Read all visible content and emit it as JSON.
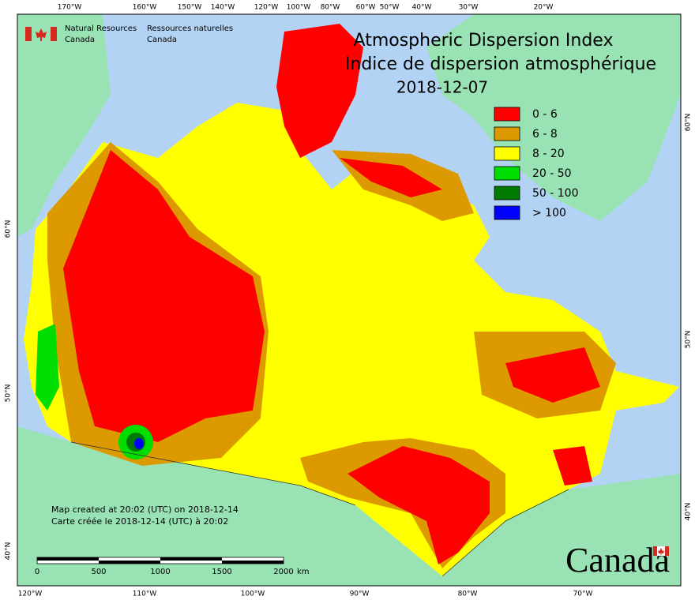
{
  "title": {
    "en": "Atmospheric Dispersion Index",
    "fr": "Indice de dispersion atmosphérique",
    "date": "2018-12-07"
  },
  "agency": {
    "en": [
      "Natural Resources",
      "Canada"
    ],
    "fr": [
      "Ressources naturelles",
      "Canada"
    ]
  },
  "legend": [
    {
      "label": "0 - 6",
      "color": "#ff0000"
    },
    {
      "label": "6 - 8",
      "color": "#dd9a00"
    },
    {
      "label": "8 - 20",
      "color": "#ffff00"
    },
    {
      "label": "20 - 50",
      "color": "#00dd00"
    },
    {
      "label": "50 - 100",
      "color": "#007a00"
    },
    {
      "label": "> 100",
      "color": "#0000ff"
    }
  ],
  "graticule": {
    "top": [
      "170°W",
      "160°W",
      "150°W",
      "140°W",
      "120°W",
      "100°W",
      "80°W",
      "60°W",
      "50°W",
      "40°W",
      "30°W",
      "20°W"
    ],
    "bottom": [
      "120°W",
      "110°W",
      "100°W",
      "90°W",
      "80°W",
      "70°W"
    ],
    "left": [
      "60°N",
      "50°N",
      "40°N"
    ],
    "right": [
      "60°N",
      "50°N",
      "40°N"
    ]
  },
  "footer": {
    "created_en": "Map created at 20:02 (UTC) on 2018-12-14",
    "created_fr": "Carte créée le 2018-12-14 (UTC) à 20:02"
  },
  "scale": {
    "labels": [
      0,
      500,
      1000,
      1500,
      2000
    ],
    "unit": "km"
  },
  "wordmark": "Canada"
}
